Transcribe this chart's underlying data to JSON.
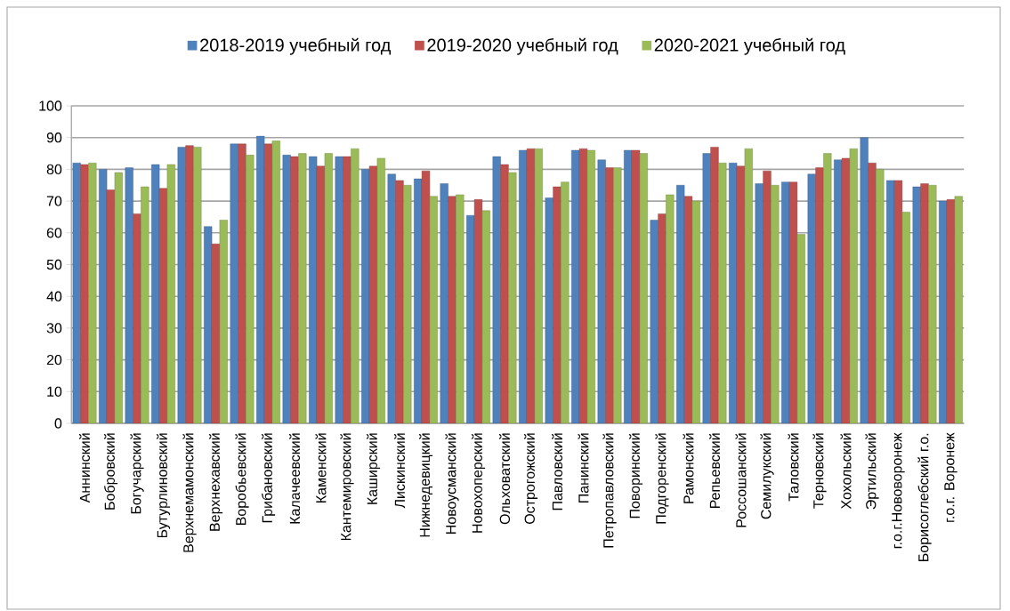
{
  "chart_data": {
    "type": "bar",
    "categories": [
      "Аннинский",
      "Бобровский",
      "Богучарский",
      "Бутурлиновский",
      "Верхнемамонский",
      "Верхнехавский",
      "Воробьевский",
      "Грибановский",
      "Калачеевский",
      "Каменский",
      "Кантемировский",
      "Каширский",
      "Лискинский",
      "Нижнедевицкий",
      "Новоусманский",
      "Новохоперский",
      "Ольховатский",
      "Острогожский",
      "Павловский",
      "Панинский",
      "Петропавловский",
      "Поворинский",
      "Подгоренский",
      "Рамонский",
      "Репьевский",
      "Россошанский",
      "Семилукский",
      "Таловский",
      "Терновский",
      "Хохольский",
      "Эртильский",
      "г.о.г.Нововоронеж",
      "Борисоглебский г.о.",
      "г.о.г. Воронеж"
    ],
    "series": [
      {
        "name": "2018-2019 учебный год",
        "color": "#4f81bd",
        "values": [
          82,
          80,
          80.5,
          81.5,
          87,
          62,
          88,
          90.5,
          84.5,
          84,
          84,
          80,
          78.5,
          77,
          75.5,
          65.5,
          84,
          86,
          71,
          86,
          83,
          86,
          64,
          75,
          85,
          82,
          75.5,
          76,
          78.5,
          83,
          90,
          76.5,
          74.5,
          70
        ]
      },
      {
        "name": "2019-2020 учебный год",
        "color": "#c0504d",
        "values": [
          81.5,
          73.5,
          66,
          74,
          87.5,
          56.5,
          88,
          88,
          84,
          81,
          84,
          81,
          76.5,
          79.5,
          71.5,
          70.5,
          81.5,
          86.5,
          74.5,
          86.5,
          80.5,
          86,
          66,
          71.5,
          87,
          81,
          79.5,
          76,
          80.5,
          83.5,
          82,
          76.5,
          75.5,
          70.5
        ]
      },
      {
        "name": "2020-2021 учебный год",
        "color": "#9bbb59",
        "values": [
          82,
          79,
          74.5,
          81.5,
          87,
          64,
          84.5,
          89,
          85,
          85,
          86.5,
          83.5,
          75,
          71.5,
          72,
          67,
          79,
          86.5,
          76,
          86,
          80.5,
          85,
          72,
          70,
          82,
          86.5,
          75,
          59.5,
          85,
          86.5,
          80,
          66.5,
          75,
          71.5
        ]
      }
    ],
    "ylim": [
      0,
      100
    ],
    "yticks": [
      0,
      10,
      20,
      30,
      40,
      50,
      60,
      70,
      80,
      90,
      100
    ],
    "grid": "y",
    "legend": "top"
  }
}
